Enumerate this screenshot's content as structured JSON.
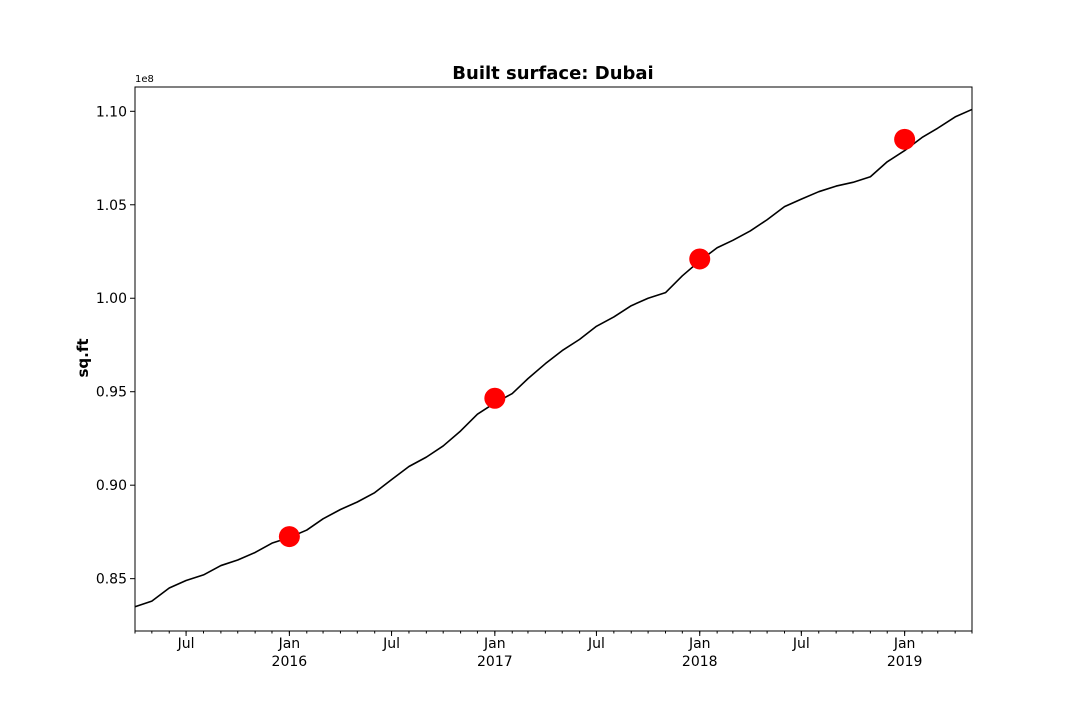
{
  "chart_data": {
    "type": "line",
    "title": "Built surface: Dubai",
    "xlabel": "",
    "ylabel": "sq.ft",
    "y_offset_label": "1e8",
    "xlim": [
      "2015-04-01",
      "2019-05-01"
    ],
    "ylim": [
      0.822,
      1.113
    ],
    "y_ticks": [
      {
        "value": 0.85,
        "label": "0.85"
      },
      {
        "value": 0.9,
        "label": "0.90"
      },
      {
        "value": 0.95,
        "label": "0.95"
      },
      {
        "value": 1.0,
        "label": "1.00"
      },
      {
        "value": 1.05,
        "label": "1.05"
      },
      {
        "value": 1.1,
        "label": "1.10"
      }
    ],
    "x_major_ticks": [
      {
        "date": "2015-07-01",
        "label": "Jul",
        "label2": ""
      },
      {
        "date": "2016-01-01",
        "label": "Jan",
        "label2": "2016"
      },
      {
        "date": "2016-07-01",
        "label": "Jul",
        "label2": ""
      },
      {
        "date": "2017-01-01",
        "label": "Jan",
        "label2": "2017"
      },
      {
        "date": "2017-07-01",
        "label": "Jul",
        "label2": ""
      },
      {
        "date": "2018-01-01",
        "label": "Jan",
        "label2": "2018"
      },
      {
        "date": "2018-07-01",
        "label": "Jul",
        "label2": ""
      },
      {
        "date": "2019-01-01",
        "label": "Jan",
        "label2": "2019"
      }
    ],
    "x_minor_ticks": "monthly",
    "grid": false,
    "series": [
      {
        "color": "#000000",
        "x": [
          "2015-04-01",
          "2015-05-01",
          "2015-06-01",
          "2015-07-01",
          "2015-08-01",
          "2015-09-01",
          "2015-10-01",
          "2015-11-01",
          "2015-12-01",
          "2016-01-01",
          "2016-02-01",
          "2016-03-01",
          "2016-04-01",
          "2016-05-01",
          "2016-06-01",
          "2016-07-01",
          "2016-08-01",
          "2016-09-01",
          "2016-10-01",
          "2016-11-01",
          "2016-12-01",
          "2017-01-01",
          "2017-02-01",
          "2017-03-01",
          "2017-04-01",
          "2017-05-01",
          "2017-06-01",
          "2017-07-01",
          "2017-08-01",
          "2017-09-01",
          "2017-10-01",
          "2017-11-01",
          "2017-12-01",
          "2018-01-01",
          "2018-02-01",
          "2018-03-01",
          "2018-04-01",
          "2018-05-01",
          "2018-06-01",
          "2018-07-01",
          "2018-08-01",
          "2018-09-01",
          "2018-10-01",
          "2018-11-01",
          "2018-12-01",
          "2019-01-01",
          "2019-02-01",
          "2019-03-01",
          "2019-04-01",
          "2019-05-01"
        ],
        "y": [
          0.835,
          0.838,
          0.845,
          0.849,
          0.852,
          0.857,
          0.86,
          0.864,
          0.869,
          0.872,
          0.876,
          0.882,
          0.887,
          0.891,
          0.896,
          0.903,
          0.91,
          0.915,
          0.921,
          0.929,
          0.938,
          0.944,
          0.949,
          0.957,
          0.965,
          0.972,
          0.978,
          0.985,
          0.99,
          0.996,
          1.0,
          1.003,
          1.012,
          1.02,
          1.027,
          1.031,
          1.036,
          1.042,
          1.049,
          1.053,
          1.057,
          1.06,
          1.062,
          1.065,
          1.073,
          1.079,
          1.086,
          1.091,
          1.097,
          1.101
        ]
      },
      {
        "type": "scatter",
        "color": "#ff0000",
        "x": [
          "2016-01-01",
          "2017-01-01",
          "2018-01-01",
          "2019-01-01"
        ],
        "y": [
          0.8725,
          0.9465,
          1.021,
          1.085
        ]
      }
    ]
  }
}
